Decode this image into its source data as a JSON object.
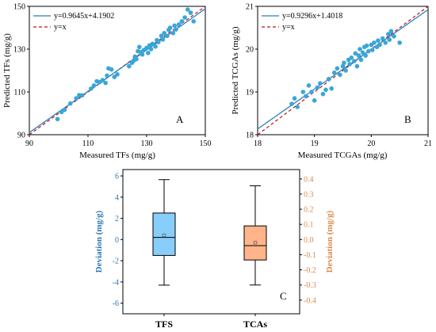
{
  "chart_data": [
    {
      "type": "scatter",
      "panel_label": "A",
      "xlabel": "Measured TFs (mg/g)",
      "ylabel": "Predicted TFs (mg/g)",
      "xlim": [
        90,
        150
      ],
      "ylim": [
        90,
        150
      ],
      "xticks": [
        "90",
        "110",
        "130",
        "150"
      ],
      "yticks": [
        "90",
        "110",
        "130",
        "150"
      ],
      "legend": {
        "fit": "y=0.9645x+4.1902",
        "ref": "y=x",
        "placement": "top-left"
      },
      "fit": {
        "slope": 0.9645,
        "intercept": 4.1902
      },
      "points": [
        [
          99.6,
          97.3
        ],
        [
          101,
          100.6
        ],
        [
          102,
          101.6
        ],
        [
          104,
          104.6
        ],
        [
          106,
          107
        ],
        [
          107,
          108.5
        ],
        [
          108,
          108.4
        ],
        [
          111,
          111.5
        ],
        [
          112,
          113
        ],
        [
          113,
          115
        ],
        [
          114,
          114.6
        ],
        [
          115,
          115.5
        ],
        [
          116,
          114.2
        ],
        [
          116.5,
          117.6
        ],
        [
          117,
          121
        ],
        [
          118,
          120.5
        ],
        [
          119,
          117
        ],
        [
          120,
          118.2
        ],
        [
          124,
          122
        ],
        [
          125,
          123.6
        ],
        [
          125.5,
          124.5
        ],
        [
          126,
          126.5
        ],
        [
          126.5,
          125.3
        ],
        [
          127,
          129
        ],
        [
          127.5,
          131
        ],
        [
          128,
          128.6
        ],
        [
          128.5,
          127.5
        ],
        [
          129,
          129.5
        ],
        [
          130,
          130.6
        ],
        [
          130.5,
          128.2
        ],
        [
          131,
          131.8
        ],
        [
          131.5,
          130
        ],
        [
          132,
          132.5
        ],
        [
          133,
          131.2
        ],
        [
          133.5,
          134.2
        ],
        [
          134,
          133.3
        ],
        [
          135,
          136.2
        ],
        [
          135.5,
          134.5
        ],
        [
          136,
          137.5
        ],
        [
          137,
          136.2
        ],
        [
          137.5,
          139
        ],
        [
          138,
          140
        ],
        [
          139,
          137.5
        ],
        [
          139.5,
          141
        ],
        [
          140,
          139.2
        ],
        [
          141,
          141.5
        ],
        [
          142,
          143
        ],
        [
          143,
          144.8
        ],
        [
          144,
          148.5
        ],
        [
          145,
          147
        ],
        [
          146,
          143
        ]
      ]
    },
    {
      "type": "scatter",
      "panel_label": "B",
      "xlabel": "Measured TCGAs (mg/g)",
      "ylabel": "Predicted TCGAs (mg/g)",
      "xlim": [
        18,
        21
      ],
      "ylim": [
        18,
        21
      ],
      "xticks": [
        "18",
        "19",
        "20",
        "21"
      ],
      "yticks": [
        "18",
        "19",
        "20",
        "21"
      ],
      "legend": {
        "fit": "y=0.9296x+1.4018",
        "ref": "y=x",
        "placement": "top-left"
      },
      "fit": {
        "slope": 0.9296,
        "intercept": 1.4018
      },
      "points": [
        [
          18.6,
          18.72
        ],
        [
          18.65,
          18.85
        ],
        [
          18.7,
          18.65
        ],
        [
          18.8,
          19.0
        ],
        [
          18.85,
          18.9
        ],
        [
          18.9,
          19.15
        ],
        [
          18.95,
          19.0
        ],
        [
          19.0,
          18.8
        ],
        [
          19.05,
          19.1
        ],
        [
          19.1,
          19.2
        ],
        [
          19.15,
          18.95
        ],
        [
          19.2,
          19.05
        ],
        [
          19.25,
          19.3
        ],
        [
          19.3,
          19.08
        ],
        [
          19.35,
          19.45
        ],
        [
          19.4,
          19.55
        ],
        [
          19.45,
          19.4
        ],
        [
          19.5,
          19.6
        ],
        [
          19.52,
          19.68
        ],
        [
          19.55,
          19.5
        ],
        [
          19.6,
          19.75
        ],
        [
          19.62,
          19.65
        ],
        [
          19.65,
          19.8
        ],
        [
          19.7,
          19.72
        ],
        [
          19.72,
          19.9
        ],
        [
          19.75,
          19.6
        ],
        [
          19.78,
          19.85
        ],
        [
          19.8,
          20.0
        ],
        [
          19.82,
          19.75
        ],
        [
          19.85,
          19.92
        ],
        [
          19.88,
          20.05
        ],
        [
          19.9,
          19.85
        ],
        [
          19.92,
          20.08
        ],
        [
          19.95,
          19.95
        ],
        [
          20.0,
          20.1
        ],
        [
          20.02,
          19.98
        ],
        [
          20.05,
          20.15
        ],
        [
          20.1,
          20.05
        ],
        [
          20.12,
          20.2
        ],
        [
          20.15,
          20.1
        ],
        [
          20.2,
          20.25
        ],
        [
          20.25,
          20.15
        ],
        [
          20.3,
          20.35
        ],
        [
          20.32,
          20.22
        ],
        [
          20.35,
          20.42
        ],
        [
          20.4,
          20.3
        ],
        [
          20.5,
          20.15
        ]
      ]
    },
    {
      "type": "box",
      "panel_label": "C",
      "categories": [
        "TFS",
        "TCAs"
      ],
      "ylabel_left": "Deviation (mg/g)",
      "ylabel_right": "Deviation (mg/g)",
      "ylim_left": [
        -7,
        6.6
      ],
      "ylim_right": [
        -0.49,
        0.462
      ],
      "yticks_left": [
        "-6",
        "-4",
        "-2",
        "0",
        "2",
        "4",
        "6"
      ],
      "yticks_right": [
        "-0.4",
        "-0.3",
        "-0.2",
        "-0.1",
        "0.0",
        "0.1",
        "0.2",
        "0.3",
        "0.4"
      ],
      "boxes": [
        {
          "name": "TFS",
          "axis": "left",
          "color": "#87cefa",
          "whislo": -4.3,
          "q1": -1.5,
          "med": 0.2,
          "mean": 0.4,
          "q3": 2.5,
          "whishi": 5.65
        },
        {
          "name": "TCAs",
          "axis": "right",
          "color": "#ffb48a",
          "whislo": -0.3,
          "q1": -0.135,
          "med": -0.04,
          "mean": -0.02,
          "q3": 0.09,
          "whishi": 0.355
        }
      ],
      "colors": {
        "left_axis": "#2f79b8",
        "right_axis": "#e08a4e"
      }
    }
  ]
}
